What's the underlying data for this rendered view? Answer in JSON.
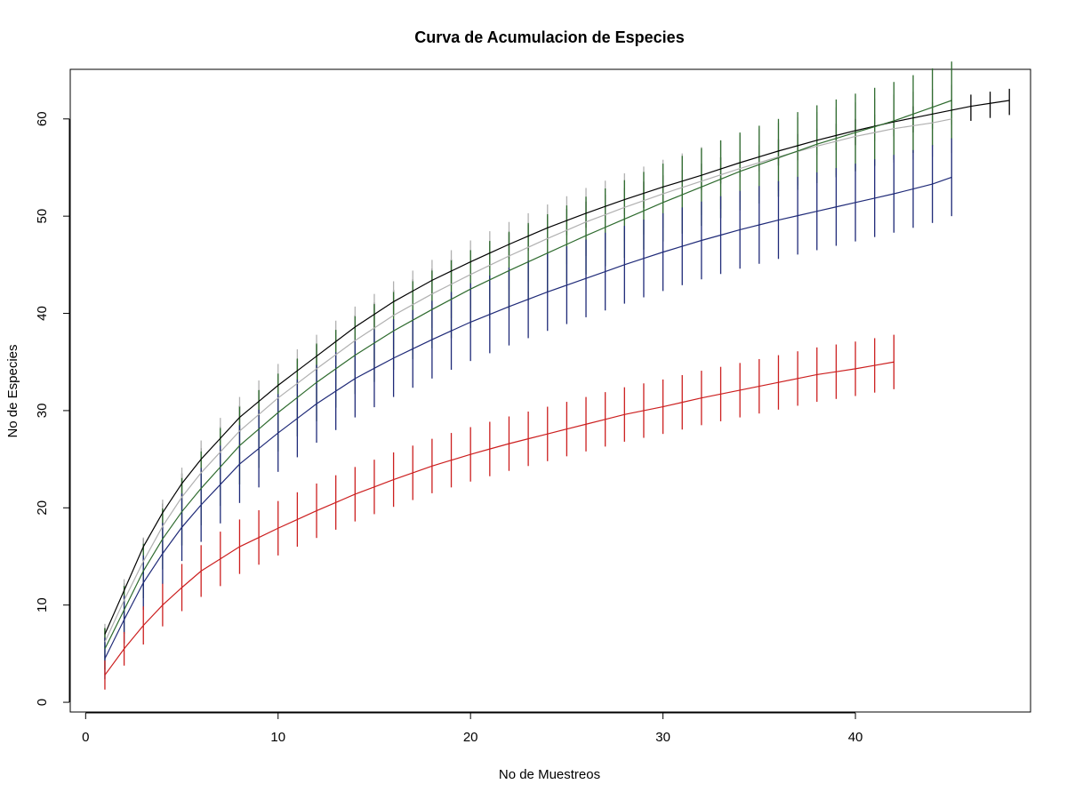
{
  "chart_data": {
    "type": "line",
    "title": "Curva de Acumulacion de Especies",
    "xlabel": "No de Muestreos",
    "ylabel": "No de Especies",
    "xlim": [
      -0.8,
      49.1
    ],
    "ylim": [
      -1,
      65.1
    ],
    "x_ticks": [
      0,
      10,
      20,
      30,
      40
    ],
    "y_ticks": [
      0,
      10,
      20,
      30,
      40,
      50,
      60
    ],
    "grid": false,
    "legend": "none",
    "series": [
      {
        "color": "#000000",
        "n": 48,
        "points": [
          [
            1,
            7
          ],
          [
            2,
            11.5
          ],
          [
            3,
            16
          ],
          [
            4,
            19.5
          ],
          [
            5,
            22.5
          ],
          [
            6,
            25
          ],
          [
            8,
            29.3
          ],
          [
            10,
            32.6
          ],
          [
            12,
            35.6
          ],
          [
            14,
            38.6
          ],
          [
            16,
            41.2
          ],
          [
            18,
            43.4
          ],
          [
            20,
            45.3
          ],
          [
            22,
            47.1
          ],
          [
            24,
            48.8
          ],
          [
            26,
            50.3
          ],
          [
            28,
            51.7
          ],
          [
            30,
            53
          ],
          [
            32,
            54.2
          ],
          [
            34,
            55.5
          ],
          [
            36,
            56.7
          ],
          [
            38,
            57.8
          ],
          [
            40,
            58.8
          ],
          [
            42,
            59.7
          ],
          [
            44,
            60.5
          ],
          [
            46,
            61.3
          ],
          [
            48,
            61.9
          ]
        ],
        "error_lo": 1.5,
        "error_hi": 1.2
      },
      {
        "color": "#b0b0b0",
        "n": 45,
        "points": [
          [
            1,
            6.2
          ],
          [
            2,
            10.5
          ],
          [
            3,
            14.5
          ],
          [
            4,
            18.1
          ],
          [
            5,
            21.1
          ],
          [
            6,
            23.6
          ],
          [
            8,
            27.9
          ],
          [
            10,
            31.3
          ],
          [
            12,
            34.3
          ],
          [
            14,
            37.2
          ],
          [
            16,
            39.8
          ],
          [
            18,
            42
          ],
          [
            20,
            44
          ],
          [
            22,
            45.9
          ],
          [
            24,
            47.7
          ],
          [
            26,
            49.4
          ],
          [
            28,
            50.9
          ],
          [
            30,
            52.3
          ],
          [
            32,
            53.6
          ],
          [
            34,
            54.9
          ],
          [
            36,
            56.1
          ],
          [
            38,
            57.2
          ],
          [
            40,
            58.2
          ],
          [
            42,
            59
          ],
          [
            44,
            59.6
          ],
          [
            45,
            60
          ]
        ],
        "error_lo": 3.5,
        "error_hi": 3.5
      },
      {
        "color": "#2e6b2e",
        "n": 45,
        "points": [
          [
            1,
            5.5
          ],
          [
            2,
            9.5
          ],
          [
            3,
            13.5
          ],
          [
            4,
            16.8
          ],
          [
            5,
            19.6
          ],
          [
            6,
            22
          ],
          [
            8,
            26.4
          ],
          [
            10,
            29.8
          ],
          [
            12,
            32.9
          ],
          [
            14,
            35.7
          ],
          [
            16,
            38.2
          ],
          [
            18,
            40.4
          ],
          [
            20,
            42.5
          ],
          [
            22,
            44.4
          ],
          [
            24,
            46.2
          ],
          [
            26,
            48
          ],
          [
            28,
            49.7
          ],
          [
            30,
            51.4
          ],
          [
            32,
            53
          ],
          [
            34,
            54.6
          ],
          [
            36,
            56
          ],
          [
            38,
            57.4
          ],
          [
            40,
            58.6
          ],
          [
            42,
            59.8
          ],
          [
            44,
            61.2
          ],
          [
            45,
            61.9
          ]
        ],
        "error_lo": 4.0,
        "error_hi": 4.0
      },
      {
        "color": "#1f2a78",
        "n": 45,
        "points": [
          [
            1,
            4.5
          ],
          [
            2,
            8.5
          ],
          [
            3,
            12.3
          ],
          [
            4,
            15.3
          ],
          [
            5,
            18
          ],
          [
            6,
            20.3
          ],
          [
            8,
            24.5
          ],
          [
            10,
            27.7
          ],
          [
            12,
            30.7
          ],
          [
            14,
            33.3
          ],
          [
            16,
            35.4
          ],
          [
            18,
            37.3
          ],
          [
            20,
            39.1
          ],
          [
            22,
            40.7
          ],
          [
            24,
            42.2
          ],
          [
            26,
            43.6
          ],
          [
            28,
            45
          ],
          [
            30,
            46.3
          ],
          [
            32,
            47.5
          ],
          [
            34,
            48.6
          ],
          [
            36,
            49.6
          ],
          [
            38,
            50.5
          ],
          [
            40,
            51.4
          ],
          [
            42,
            52.3
          ],
          [
            44,
            53.3
          ],
          [
            45,
            54
          ]
        ],
        "error_lo": 4.0,
        "error_hi": 4.0
      },
      {
        "color": "#cc1f1f",
        "n": 42,
        "points": [
          [
            1,
            2.8
          ],
          [
            2,
            5.5
          ],
          [
            3,
            7.9
          ],
          [
            4,
            10
          ],
          [
            5,
            11.8
          ],
          [
            6,
            13.5
          ],
          [
            8,
            16
          ],
          [
            10,
            17.9
          ],
          [
            12,
            19.7
          ],
          [
            14,
            21.4
          ],
          [
            16,
            22.9
          ],
          [
            18,
            24.3
          ],
          [
            20,
            25.5
          ],
          [
            22,
            26.6
          ],
          [
            24,
            27.6
          ],
          [
            26,
            28.6
          ],
          [
            28,
            29.6
          ],
          [
            30,
            30.4
          ],
          [
            32,
            31.3
          ],
          [
            34,
            32.1
          ],
          [
            36,
            32.9
          ],
          [
            38,
            33.7
          ],
          [
            40,
            34.3
          ],
          [
            42,
            35
          ]
        ],
        "error_lo": 2.8,
        "error_hi": 2.8
      }
    ]
  }
}
